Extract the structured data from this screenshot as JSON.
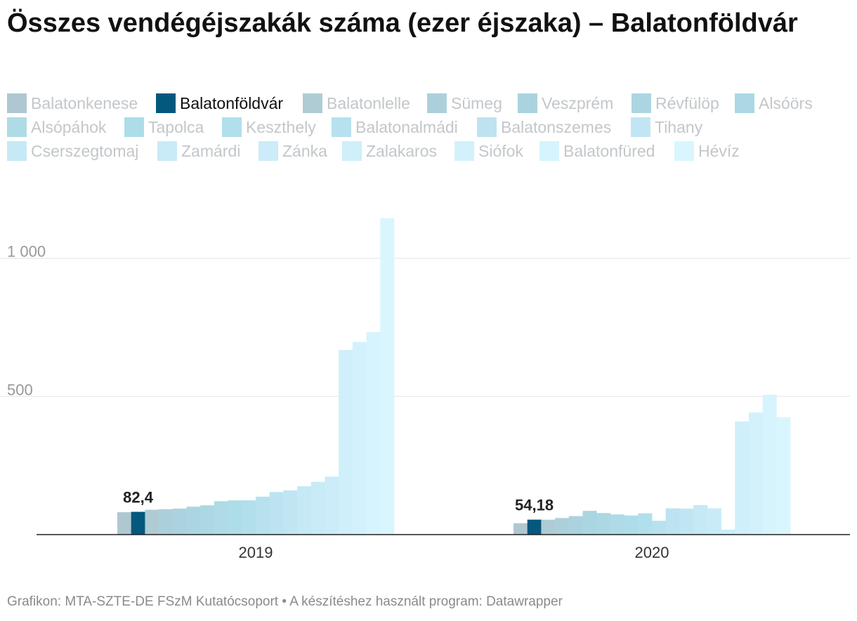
{
  "title": "Összes vendégéjszakák száma (ezer éjszaka) – Balatonföldvár",
  "footer": "Grafikon: MTA-SZTE-DE FSzM Kutatócsoport • A készítéshez használt program: Datawrapper",
  "legend": {
    "highlight": "Balatonföldvár",
    "items": [
      {
        "label": "Balatonkenese",
        "color": "#afc7d0"
      },
      {
        "label": "Balatonföldvár",
        "color": "#04587e"
      },
      {
        "label": "Balatonlelle",
        "color": "#afccd4"
      },
      {
        "label": "Sümeg",
        "color": "#acd0db"
      },
      {
        "label": "Veszprém",
        "color": "#abd3df"
      },
      {
        "label": "Révfülöp",
        "color": "#abd6e1"
      },
      {
        "label": "Alsóörs",
        "color": "#abd8e3"
      },
      {
        "label": "Alsópáhok",
        "color": "#aedbe5"
      },
      {
        "label": "Tapolca",
        "color": "#aeddea"
      },
      {
        "label": "Keszthely",
        "color": "#b1dfec"
      },
      {
        "label": "Balatonalmádi",
        "color": "#b7e1ef"
      },
      {
        "label": "Balatonszemes",
        "color": "#bde3f1"
      },
      {
        "label": "Tihany",
        "color": "#c1e6f3"
      },
      {
        "label": "Cserszegtomaj",
        "color": "#c5e9f5"
      },
      {
        "label": "Zamárdi",
        "color": "#c8ebf7"
      },
      {
        "label": "Zánka",
        "color": "#cbecf8"
      },
      {
        "label": "Zalakaros",
        "color": "#cfeffa"
      },
      {
        "label": "Siófok",
        "color": "#d3f1fc"
      },
      {
        "label": "Balatonfüred",
        "color": "#d6f4fd"
      },
      {
        "label": "Hévíz",
        "color": "#d9f6fe"
      }
    ]
  },
  "chart_data": {
    "type": "bar",
    "title": "Összes vendégéjszakák száma (ezer éjszaka) – Balatonföldvár",
    "xlabel": "",
    "ylabel": "",
    "ylim": [
      0,
      1150
    ],
    "yticks": [
      {
        "value": 500,
        "label": "500"
      },
      {
        "value": 1000,
        "label": "1 000"
      }
    ],
    "categories": [
      "2019",
      "2020"
    ],
    "grid": true,
    "legend_position": "top",
    "highlight_series": "Balatonföldvár",
    "data_labels": [
      {
        "series": "Balatonföldvár",
        "category": "2019",
        "label": "82,4"
      },
      {
        "series": "Balatonföldvár",
        "category": "2020",
        "label": "54,18"
      }
    ],
    "series": [
      {
        "name": "Balatonkenese",
        "values": [
          81,
          41
        ]
      },
      {
        "name": "Balatonföldvár",
        "values": [
          82.4,
          54.18
        ]
      },
      {
        "name": "Balatonlelle",
        "values": [
          90,
          54
        ]
      },
      {
        "name": "Sümeg",
        "values": [
          92,
          60
        ]
      },
      {
        "name": "Veszprém",
        "values": [
          94,
          67
        ]
      },
      {
        "name": "Révfülöp",
        "values": [
          101,
          86
        ]
      },
      {
        "name": "Alsóörs",
        "values": [
          106,
          78
        ]
      },
      {
        "name": "Alsópáhok",
        "values": [
          121,
          73
        ]
      },
      {
        "name": "Tapolca",
        "values": [
          124,
          69
        ]
      },
      {
        "name": "Keszthely",
        "values": [
          124,
          77
        ]
      },
      {
        "name": "Balatonalmádi",
        "values": [
          137,
          50
        ]
      },
      {
        "name": "Balatonszemes",
        "values": [
          154,
          95
        ]
      },
      {
        "name": "Tihany",
        "values": [
          160,
          94
        ]
      },
      {
        "name": "Cserszegtomaj",
        "values": [
          175,
          107
        ]
      },
      {
        "name": "Zamárdi",
        "values": [
          191,
          95
        ]
      },
      {
        "name": "Zánka",
        "values": [
          210,
          18
        ]
      },
      {
        "name": "Zalakaros",
        "values": [
          668,
          409
        ]
      },
      {
        "name": "Siófok",
        "values": [
          697,
          442
        ]
      },
      {
        "name": "Balatonfüred",
        "values": [
          733,
          506
        ]
      },
      {
        "name": "Hévíz",
        "values": [
          1145,
          425
        ]
      }
    ]
  }
}
